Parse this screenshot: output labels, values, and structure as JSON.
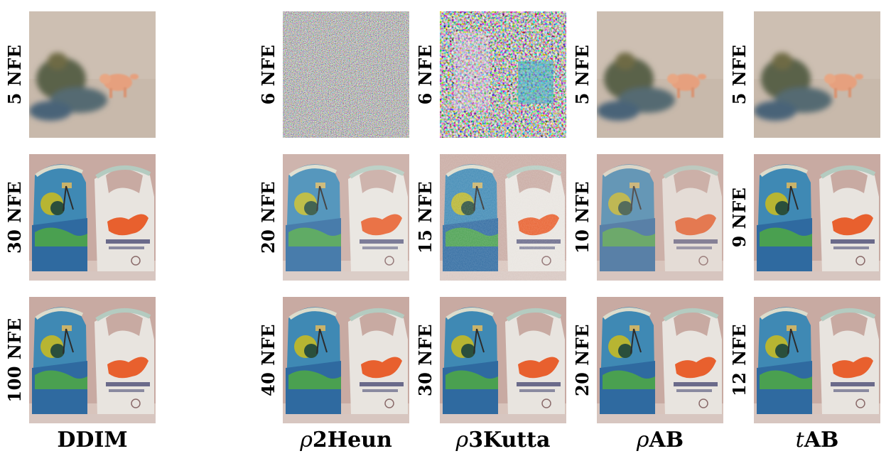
{
  "columns": [
    {
      "label_prefix": "",
      "label_main": "DDIM",
      "nfe": [
        "5 NFE",
        "30 NFE",
        "100 NFE"
      ]
    },
    {
      "label_prefix": "ρ",
      "label_main": "2Heun",
      "nfe": [
        "6 NFE",
        "20 NFE",
        "40 NFE"
      ]
    },
    {
      "label_prefix": "ρ",
      "label_main": "3Kutta",
      "nfe": [
        "6 NFE",
        "15 NFE",
        "30 NFE"
      ]
    },
    {
      "label_prefix": "ρ",
      "label_main": "AB",
      "nfe": [
        "5 NFE",
        "10 NFE",
        "20 NFE"
      ]
    },
    {
      "label_prefix": "t",
      "label_main": "AB",
      "nfe": [
        "5 NFE",
        "9 NFE",
        "12 NFE"
      ]
    }
  ]
}
